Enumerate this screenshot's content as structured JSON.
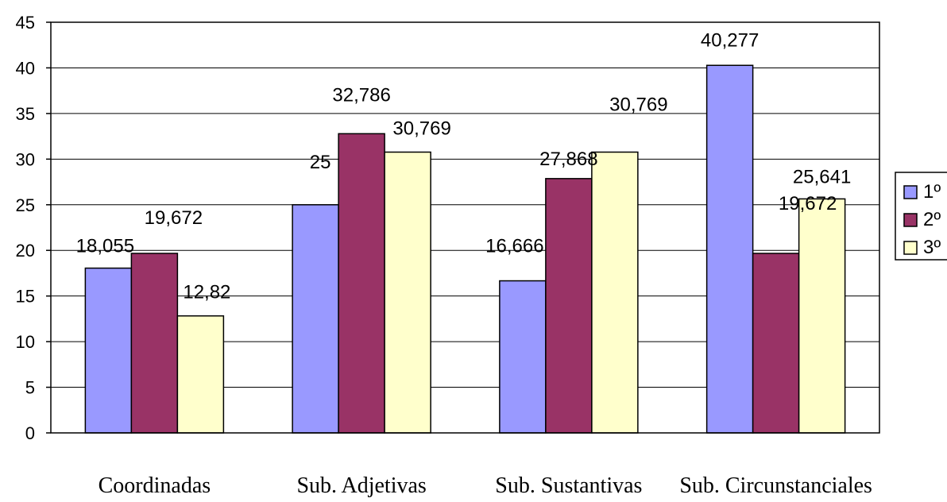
{
  "chart_data": {
    "type": "bar",
    "title": "",
    "xlabel": "",
    "ylabel": "",
    "categories": [
      "Coordinadas",
      "Sub. Adjetivas",
      "Sub. Sustantivas",
      "Sub. Circunstanciales"
    ],
    "series": [
      {
        "name": "1º",
        "color": "#9999FF",
        "values": [
          18.055,
          25,
          16.666,
          40.277
        ],
        "labels": [
          "18,055",
          "25",
          "16,666",
          "40,277"
        ]
      },
      {
        "name": "2º",
        "color": "#993366",
        "values": [
          19.672,
          32.786,
          27.868,
          19.672
        ],
        "labels": [
          "19,672",
          "32,786",
          "27,868",
          "19,672"
        ]
      },
      {
        "name": "3º",
        "color": "#FFFFCC",
        "values": [
          12.82,
          30.769,
          30.769,
          25.641
        ],
        "labels": [
          "12,82",
          "30,769",
          "30,769",
          "25,641"
        ]
      }
    ],
    "ylim": [
      0,
      45
    ],
    "yticks": [
      0,
      5,
      10,
      15,
      20,
      25,
      30,
      35,
      40,
      45
    ],
    "grid": true,
    "legend": "right"
  }
}
